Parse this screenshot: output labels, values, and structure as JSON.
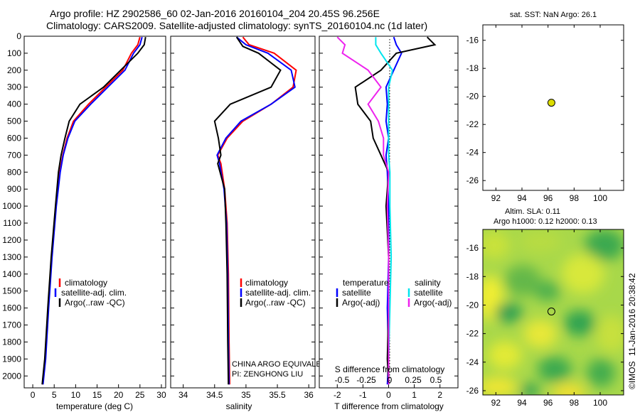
{
  "header": {
    "line1": "Argo profile: HZ 2902586_60 02-Jan-2016 20160104_204 20.45S 96.256E",
    "line2": "Climatology: CARS2009. Satellite-adjusted climatology: synTS_20160104.nc (1d later)"
  },
  "credit": {
    "org": "©IMOS",
    "timestamp": "11-Jan-2016 20:38:42"
  },
  "colors": {
    "climatology": "#ff0000",
    "satellite": "#0000ff",
    "argo": "#000000",
    "salinity_satellite": "#00e5ee",
    "salinity_argo": "#ee22ee",
    "sst_marker": "#dddd00"
  },
  "chart_data": [
    {
      "id": "temperature",
      "type": "line",
      "xlabel": "temperature (deg C)",
      "ylabel": "",
      "xlim": [
        -2,
        31
      ],
      "ylim": [
        2070,
        0
      ],
      "xticks": [
        "0",
        "5",
        "10",
        "15",
        "20",
        "25",
        "30"
      ],
      "xtick_values": [
        0,
        5,
        10,
        15,
        20,
        25,
        30
      ],
      "yticks": [
        "0",
        "100",
        "200",
        "300",
        "400",
        "500",
        "600",
        "700",
        "800",
        "900",
        "1000",
        "1100",
        "1200",
        "1300",
        "1400",
        "1500",
        "1600",
        "1700",
        "1800",
        "1900",
        "2000"
      ],
      "ytick_values": [
        0,
        100,
        200,
        300,
        400,
        500,
        600,
        700,
        800,
        900,
        1000,
        1100,
        1200,
        1300,
        1400,
        1500,
        1600,
        1700,
        1800,
        1900,
        2000
      ],
      "legend": [
        "climatology",
        "satellite-adj. clim.",
        "Argo(..raw -QC)"
      ],
      "series": [
        {
          "name": "climatology",
          "color": "#ff0000",
          "x": [
            25,
            24.5,
            23,
            21,
            17,
            13,
            9.5,
            8,
            7,
            6.3,
            5.4,
            4.4,
            3.6,
            2.9,
            2.3
          ],
          "y": [
            5,
            50,
            100,
            200,
            300,
            400,
            500,
            600,
            700,
            800,
            1000,
            1300,
            1600,
            1900,
            2050
          ]
        },
        {
          "name": "satellite-adj. clim.",
          "color": "#0000ff",
          "x": [
            25.5,
            25,
            23.5,
            21.5,
            17.5,
            13.5,
            9.8,
            8.2,
            7.1,
            6.4,
            5.5,
            4.5,
            3.7,
            3,
            2.4
          ],
          "y": [
            5,
            50,
            100,
            200,
            300,
            400,
            500,
            600,
            700,
            800,
            1000,
            1300,
            1600,
            1900,
            2050
          ]
        },
        {
          "name": "Argo(..raw -QC)",
          "color": "#000000",
          "x": [
            26.3,
            26,
            24.5,
            20.5,
            16.5,
            11,
            8.5,
            7.5,
            6.6,
            6,
            5.3,
            4.3,
            3.5,
            2.8,
            2.2
          ],
          "y": [
            5,
            50,
            100,
            200,
            300,
            400,
            500,
            600,
            700,
            800,
            1000,
            1300,
            1600,
            1900,
            2050
          ]
        }
      ]
    },
    {
      "id": "salinity",
      "type": "line",
      "xlabel": "salinity",
      "xlim": [
        33.8,
        36.1
      ],
      "ylim": [
        2070,
        0
      ],
      "xticks": [
        "34",
        "34.5",
        "35",
        "35.5",
        "36"
      ],
      "xtick_values": [
        34,
        34.5,
        35,
        35.5,
        36
      ],
      "legend": [
        "climatology",
        "satellite-adj. clim.",
        "Argo(..raw -QC)"
      ],
      "annotation": [
        "CHINA ARGO EQUIVALENT",
        "PI: ZENGHONG LIU"
      ],
      "series": [
        {
          "name": "climatology",
          "color": "#ff0000",
          "x": [
            34.95,
            35.05,
            35.45,
            35.8,
            35.75,
            35.4,
            34.95,
            34.7,
            34.55,
            34.6,
            34.66,
            34.7,
            34.72,
            34.73,
            34.74
          ],
          "y": [
            5,
            50,
            100,
            200,
            300,
            400,
            500,
            600,
            700,
            750,
            900,
            1100,
            1400,
            1800,
            2050
          ]
        },
        {
          "name": "satellite-adj. clim.",
          "color": "#0000ff",
          "x": [
            34.85,
            35,
            35.35,
            35.72,
            35.78,
            35.4,
            34.92,
            34.68,
            34.54,
            34.58,
            34.65,
            34.69,
            34.71,
            34.72,
            34.73
          ],
          "y": [
            5,
            50,
            100,
            200,
            300,
            400,
            500,
            600,
            700,
            750,
            900,
            1100,
            1400,
            1800,
            2050
          ]
        },
        {
          "name": "Argo(..raw -QC)",
          "color": "#000000",
          "x": [
            34.85,
            34.95,
            35.2,
            35.55,
            35.4,
            34.75,
            34.5,
            34.56,
            34.6,
            34.55,
            34.66,
            34.68,
            34.7,
            34.71,
            34.72
          ],
          "y": [
            5,
            60,
            100,
            200,
            300,
            400,
            500,
            600,
            700,
            750,
            900,
            1100,
            1400,
            1800,
            2050
          ]
        }
      ]
    },
    {
      "id": "differences",
      "type": "line",
      "xlabel": "T difference from climatology",
      "top_xlabel": "S difference from climatology",
      "xlim": [
        -2.7,
        2.7
      ],
      "ylim": [
        2070,
        0
      ],
      "xticks": [
        "-2",
        "-1",
        "0",
        "1",
        "2"
      ],
      "xtick_values": [
        -2,
        -1,
        0,
        1,
        2
      ],
      "s_ticks": [
        "-0.5",
        "-0.25",
        "0",
        "0.25",
        "0.5"
      ],
      "legend_headers": [
        "temperature",
        "salinity"
      ],
      "legend": [
        "satellite",
        "Argo(-adj)",
        "satellite",
        "Argo(-adj)"
      ],
      "series": [
        {
          "name": "temperature satellite",
          "color": "#0000ff",
          "x": [
            0.2,
            0.3,
            0.5,
            0.2,
            -0.1,
            -0.05,
            -0.1,
            0,
            -0.1,
            -0.05,
            0,
            0,
            -0.05,
            0,
            -0.05
          ],
          "y": [
            5,
            50,
            100,
            200,
            300,
            400,
            500,
            600,
            700,
            800,
            1000,
            1300,
            1600,
            1900,
            2050
          ]
        },
        {
          "name": "temperature Argo(-adj)",
          "color": "#000000",
          "x": [
            1.5,
            1.8,
            0.3,
            -0.3,
            -1.3,
            -1.2,
            -0.7,
            -0.6,
            -0.3,
            0,
            -0.1,
            0,
            0,
            -0.05,
            0
          ],
          "y": [
            5,
            50,
            100,
            200,
            300,
            400,
            500,
            600,
            700,
            800,
            1000,
            1300,
            1600,
            1900,
            2050
          ]
        },
        {
          "name": "salinity satellite",
          "color": "#00e5ee",
          "x": [
            -0.5,
            -0.5,
            -0.3,
            0.15,
            0,
            0,
            0,
            0,
            0,
            0.05,
            0.05,
            0.1,
            0.05,
            0,
            0
          ],
          "y": [
            5,
            50,
            100,
            200,
            300,
            400,
            500,
            600,
            700,
            800,
            1000,
            1300,
            1600,
            1900,
            2050
          ]
        },
        {
          "name": "salinity Argo(-adj)",
          "color": "#ee22ee",
          "x": [
            -2,
            -1.7,
            -1.8,
            -0.8,
            -0.3,
            -0.8,
            -0.4,
            -0.2,
            -0.2,
            0,
            -0.05,
            0,
            0,
            0,
            0
          ],
          "y": [
            5,
            50,
            100,
            200,
            300,
            400,
            500,
            600,
            700,
            800,
            1000,
            1300,
            1600,
            1900,
            2050
          ]
        }
      ]
    },
    {
      "id": "sst_map",
      "type": "scatter",
      "title": "sat. SST: NaN Argo: 26.1",
      "xlim": [
        91,
        101.8
      ],
      "ylim": [
        -26.7,
        -14.9
      ],
      "xticks": [
        "92",
        "94",
        "96",
        "98",
        "100"
      ],
      "xtick_values": [
        92,
        94,
        96,
        98,
        100
      ],
      "yticks": [
        "-16",
        "-18",
        "-20",
        "-22",
        "-24",
        "-26"
      ],
      "ytick_values": [
        -16,
        -18,
        -20,
        -22,
        -24,
        -26
      ],
      "points": [
        {
          "lon": 96.256,
          "lat": -20.45
        }
      ]
    },
    {
      "id": "sla_map",
      "type": "heatmap",
      "title": "Altim. SLA: 0.11",
      "subtitle": "Argo h1000: 0.12 h2000: 0.13",
      "xlim": [
        91,
        101.8
      ],
      "ylim": [
        -26.3,
        -14.7
      ],
      "xticks": [
        "92",
        "94",
        "96",
        "98",
        "100"
      ],
      "xtick_values": [
        92,
        94,
        96,
        98,
        100
      ],
      "yticks": [
        "-16",
        "-18",
        "-20",
        "-22",
        "-24",
        "-26"
      ],
      "ytick_values": [
        -16,
        -18,
        -20,
        -22,
        -24,
        -26
      ],
      "points": [
        {
          "lon": 96.256,
          "lat": -20.45
        }
      ]
    }
  ]
}
